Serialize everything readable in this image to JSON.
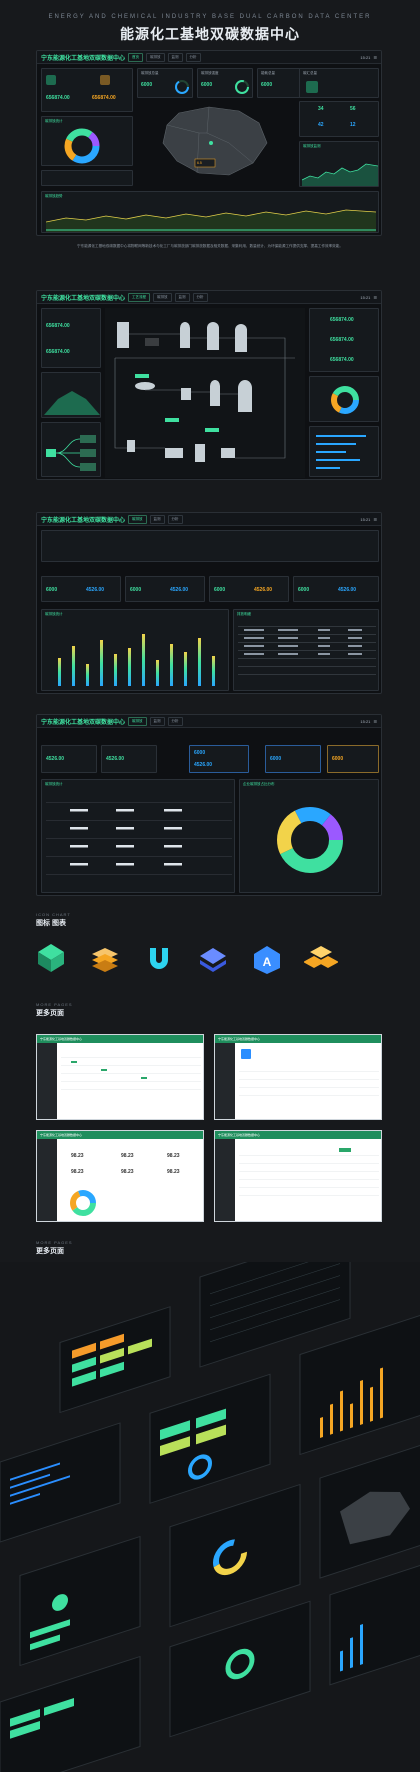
{
  "hero": {
    "en": "ENERGY AND CHEMICAL INDUSTRY BASE DUAL CARBON DATA CENTER",
    "cn": "能源化工基地双碳数据中心"
  },
  "dash1": {
    "title": "宁东能源化工基地双碳数据中心",
    "time": "15:21",
    "metric_a": "6000",
    "metric_b": "6000",
    "metric_c": "6000",
    "val1": "656874.00",
    "val2": "656874.00",
    "side_a": "34",
    "side_b": "56",
    "side_c": "42",
    "side_d": "12",
    "tip": "6.5",
    "sec1": "碳排放统计",
    "sec2": "碳排放监测",
    "sec3": "碳排放趋势",
    "sec4": "碳排放强度"
  },
  "description": "宁东能源化工基地双碳数据中心将物联网等新技术与化工厂与碳排放部门碳排放数据及相关数据、采集利用、数量统计、为环保能源工作提供支撑、提高工作效率效能。",
  "dash2": {
    "title": "宁东能源化工基地双碳数据中心",
    "time": "15:21",
    "val1": "656874.00",
    "val2": "656874.00",
    "val3": "656874.00",
    "val4": "656874.00",
    "val5": "656874.00"
  },
  "dash3": {
    "title": "宁东能源化工基地双碳数据中心",
    "time": "15:21",
    "k1": "6000",
    "k2": "6000",
    "k3": "6000",
    "k4": "6000",
    "v1": "4526.00",
    "v2": "4526.00",
    "v3": "4526.00",
    "v4": "4526.00",
    "tab1": "碳排放统计",
    "tab2": "排放明细"
  },
  "dash4": {
    "title": "宁东能源化工基地双碳数据中心",
    "time": "15:21",
    "k1": "6000",
    "k2": "6000",
    "k3": "6000",
    "v1": "4526.00",
    "v2": "4526.00",
    "v3": "4526.00",
    "tab1": "碳排放统计",
    "tab2": "企业碳排放占比分布"
  },
  "icon_chart": {
    "en": "ICON CHART",
    "cn": "图标 图表"
  },
  "more_pages": {
    "en": "MORE PAGES",
    "cn": "更多页面"
  },
  "more_pages2": {
    "en": "MORE PAGES",
    "cn": "更多页面"
  },
  "thumbs": {
    "t1": "宁东能源化工基地双碳数据中心",
    "t2": "宁东能源化工基地双碳数据中心",
    "t3": "宁东能源化工基地双碳数据中心",
    "t4": "宁东能源化工基地双碳数据中心",
    "stat1": "98.23",
    "stat2": "98.23",
    "stat3": "98.23",
    "stat4": "98.23",
    "stat5": "98.23",
    "stat6": "98.23"
  },
  "colors": {
    "accent": "#3fe0a0",
    "bg": "#17191c",
    "panel": "#0e1013",
    "orange": "#f5a623",
    "blue": "#3a8eff"
  }
}
